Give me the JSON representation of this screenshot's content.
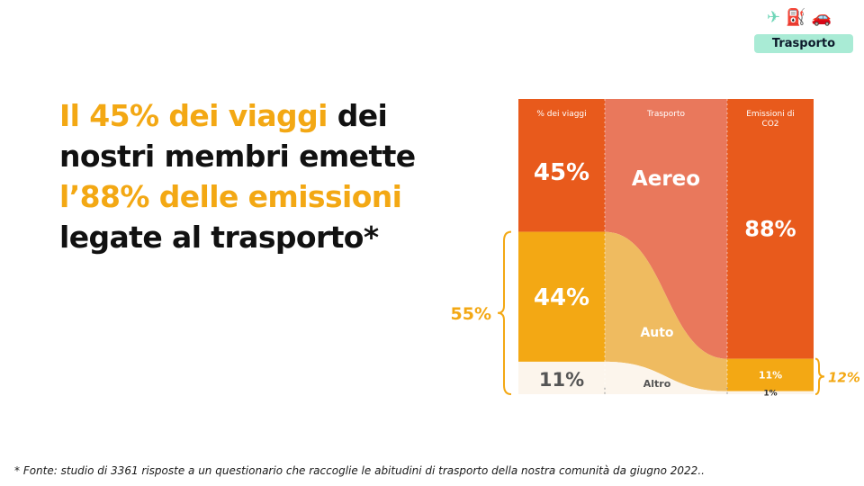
{
  "header": {
    "icons": [
      "plane-icon",
      "fuel-pump-icon",
      "car-icon"
    ],
    "badge": "Trasporto"
  },
  "headline": {
    "parts": [
      {
        "text": "Il 45% dei viaggi",
        "highlight": true
      },
      {
        "text": " dei nostri membri emette ",
        "highlight": false
      },
      {
        "text": "l’88% delle emissioni",
        "highlight": true
      },
      {
        "text": " legate al trasporto*",
        "highlight": false
      }
    ]
  },
  "footnote": "* Fonte: studio di 3361 risposte a un questionario che raccoglie le abitudini di trasporto della nostra comunità da giugno 2022..",
  "colors": {
    "highlight": "#f3a814",
    "aereo": "#e85a1c",
    "aereo_flow": "#e9785c",
    "auto": "#f3a814",
    "auto_flow": "#efbb60",
    "altro": "#fcf5ec"
  },
  "chart_data": {
    "type": "sankey",
    "columns": [
      "% dei viaggi",
      "Trasporto",
      "Emissioni di CO2"
    ],
    "categories": [
      "Aereo",
      "Auto",
      "Altro"
    ],
    "series": [
      {
        "name": "% dei viaggi",
        "values": [
          45,
          44,
          11
        ],
        "labels": [
          "45%",
          "44%",
          "11%"
        ]
      },
      {
        "name": "Emissioni di CO2",
        "values": [
          88,
          11,
          1
        ],
        "labels": [
          "88%",
          "11%",
          "1%"
        ]
      }
    ],
    "brackets": [
      {
        "side": "left",
        "label": "55%",
        "spans": [
          "Auto",
          "Altro"
        ],
        "series": "% dei viaggi"
      },
      {
        "side": "right",
        "label": "12%",
        "spans": [
          "Auto",
          "Altro"
        ],
        "series": "Emissioni di CO2"
      }
    ]
  }
}
